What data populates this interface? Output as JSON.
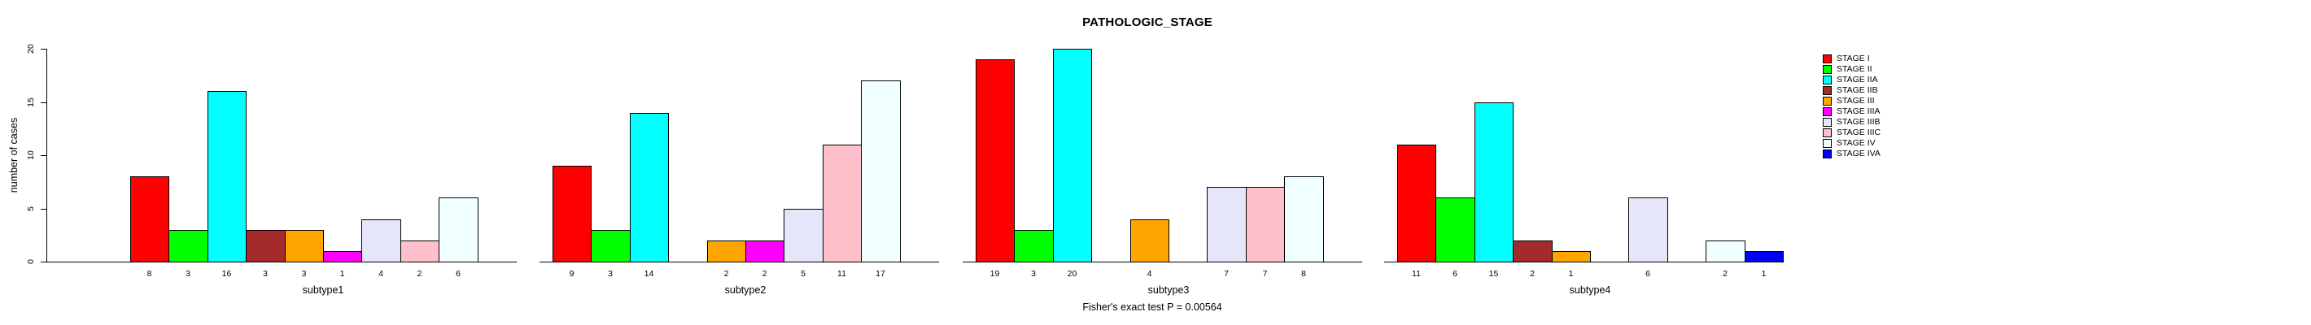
{
  "chart_data": {
    "type": "bar",
    "title": "PATHOLOGIC_STAGE",
    "ylabel": "number of cases",
    "ylim": [
      0,
      20
    ],
    "yticks": [
      0,
      5,
      10,
      15,
      20
    ],
    "grid": false,
    "legend_position": "right",
    "annotation": "Fisher's exact test P = 0.00564",
    "categories": [
      "subtype1",
      "subtype2",
      "subtype3",
      "subtype4"
    ],
    "series": [
      {
        "name": "STAGE I",
        "color": "#FF0000",
        "values": [
          8,
          9,
          19,
          11
        ]
      },
      {
        "name": "STAGE II",
        "color": "#00FF00",
        "values": [
          3,
          3,
          3,
          6
        ]
      },
      {
        "name": "STAGE IIA",
        "color": "#00FFFF",
        "values": [
          16,
          14,
          20,
          15
        ]
      },
      {
        "name": "STAGE IIB",
        "color": "#A52A2A",
        "values": [
          3,
          0,
          0,
          2
        ]
      },
      {
        "name": "STAGE III",
        "color": "#FFA500",
        "values": [
          3,
          2,
          4,
          1
        ]
      },
      {
        "name": "STAGE IIIA",
        "color": "#FF00FF",
        "values": [
          1,
          2,
          0,
          0
        ]
      },
      {
        "name": "STAGE IIIB",
        "color": "#E6E6FA",
        "values": [
          4,
          5,
          7,
          6
        ]
      },
      {
        "name": "STAGE IIIC",
        "color": "#FFC0CB",
        "values": [
          2,
          11,
          7,
          0
        ]
      },
      {
        "name": "STAGE IV",
        "color": "#F0FFFF",
        "values": [
          6,
          17,
          8,
          2
        ]
      },
      {
        "name": "STAGE IVA",
        "color": "#0000FF",
        "values": [
          0,
          0,
          0,
          1
        ]
      }
    ]
  }
}
